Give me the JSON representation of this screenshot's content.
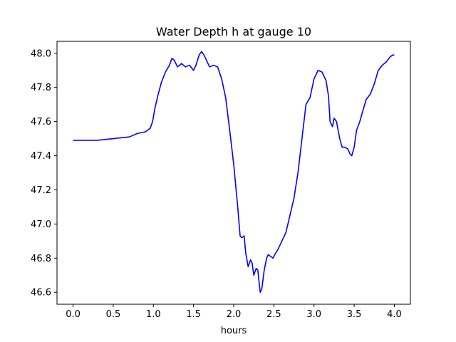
{
  "chart_data": {
    "type": "line",
    "title": "Water Depth h at gauge 10",
    "xlabel": "hours",
    "ylabel": "",
    "xlim": [
      -0.2,
      4.2
    ],
    "ylim": [
      46.53,
      48.07
    ],
    "xticks": [
      0.0,
      0.5,
      1.0,
      1.5,
      2.0,
      2.5,
      3.0,
      3.5,
      4.0
    ],
    "xtick_labels": [
      "0.0",
      "0.5",
      "1.0",
      "1.5",
      "2.0",
      "2.5",
      "3.0",
      "3.5",
      "4.0"
    ],
    "yticks": [
      46.6,
      46.8,
      47.0,
      47.2,
      47.4,
      47.6,
      47.8,
      48.0
    ],
    "ytick_labels": [
      "46.6",
      "46.8",
      "47.0",
      "47.2",
      "47.4",
      "47.6",
      "47.8",
      "48.0"
    ],
    "grid": false,
    "legend": false,
    "series": [
      {
        "color": "#0000ff",
        "x": [
          0.0,
          0.3,
          0.5,
          0.7,
          0.8,
          0.9,
          0.96,
          0.99,
          1.02,
          1.06,
          1.1,
          1.15,
          1.2,
          1.23,
          1.26,
          1.3,
          1.35,
          1.4,
          1.45,
          1.5,
          1.53,
          1.57,
          1.6,
          1.63,
          1.67,
          1.7,
          1.75,
          1.8,
          1.85,
          1.9,
          1.95,
          2.0,
          2.05,
          2.08,
          2.1,
          2.13,
          2.15,
          2.18,
          2.21,
          2.23,
          2.25,
          2.28,
          2.3,
          2.33,
          2.35,
          2.38,
          2.41,
          2.43,
          2.46,
          2.49,
          2.51,
          2.55,
          2.6,
          2.65,
          2.7,
          2.75,
          2.8,
          2.85,
          2.9,
          2.95,
          3.0,
          3.05,
          3.1,
          3.15,
          3.18,
          3.2,
          3.23,
          3.25,
          3.28,
          3.32,
          3.35,
          3.38,
          3.42,
          3.45,
          3.47,
          3.5,
          3.53,
          3.57,
          3.6,
          3.65,
          3.7,
          3.75,
          3.8,
          3.85,
          3.9,
          3.95,
          3.98,
          4.0
        ],
        "y": [
          47.49,
          47.49,
          47.5,
          47.51,
          47.53,
          47.54,
          47.56,
          47.6,
          47.68,
          47.76,
          47.83,
          47.89,
          47.93,
          47.97,
          47.96,
          47.92,
          47.94,
          47.92,
          47.93,
          47.9,
          47.93,
          47.99,
          48.01,
          47.99,
          47.95,
          47.92,
          47.93,
          47.92,
          47.85,
          47.74,
          47.55,
          47.35,
          47.1,
          46.93,
          46.92,
          46.93,
          46.83,
          46.75,
          46.79,
          46.77,
          46.7,
          46.74,
          46.73,
          46.6,
          46.62,
          46.73,
          46.8,
          46.82,
          46.81,
          46.8,
          46.82,
          46.85,
          46.9,
          46.95,
          47.05,
          47.15,
          47.3,
          47.5,
          47.7,
          47.74,
          47.85,
          47.9,
          47.89,
          47.84,
          47.75,
          47.6,
          47.57,
          47.62,
          47.6,
          47.5,
          47.45,
          47.45,
          47.44,
          47.41,
          47.4,
          47.45,
          47.55,
          47.6,
          47.65,
          47.73,
          47.76,
          47.82,
          47.9,
          47.93,
          47.95,
          47.98,
          47.99,
          47.99
        ]
      }
    ]
  }
}
